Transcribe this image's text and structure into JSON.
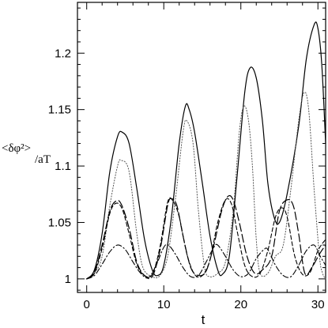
{
  "chart_data": {
    "type": "line",
    "xlabel": "t",
    "ylabel": {
      "main": "<δφ²>",
      "denominator": "/aT"
    },
    "xlim": [
      -1.2,
      31
    ],
    "ylim": [
      0.988,
      1.245
    ],
    "xticks": [
      0,
      10,
      20,
      30
    ],
    "yticks": [
      1,
      1.05,
      1.1,
      1.15,
      1.2
    ],
    "ytick_labels": [
      "1",
      "1.05",
      "1.1",
      "1.15",
      "1.2"
    ],
    "grid": false,
    "legend": "none",
    "series": [
      {
        "style": "solid",
        "color": "#000000",
        "points": [
          [
            0,
            1.0
          ],
          [
            1,
            1.008
          ],
          [
            2,
            1.04
          ],
          [
            3,
            1.095
          ],
          [
            4,
            1.126
          ],
          [
            4.6,
            1.13
          ],
          [
            5.5,
            1.12
          ],
          [
            6.5,
            1.08
          ],
          [
            7.5,
            1.035
          ],
          [
            8.5,
            1.008
          ],
          [
            9.2,
            1.003
          ],
          [
            10,
            1.012
          ],
          [
            11,
            1.055
          ],
          [
            12,
            1.12
          ],
          [
            12.8,
            1.153
          ],
          [
            13.3,
            1.15
          ],
          [
            14,
            1.13
          ],
          [
            15,
            1.085
          ],
          [
            16,
            1.038
          ],
          [
            17,
            1.008
          ],
          [
            17.6,
            1.004
          ],
          [
            18.5,
            1.02
          ],
          [
            19.5,
            1.09
          ],
          [
            20.5,
            1.165
          ],
          [
            21.2,
            1.187
          ],
          [
            22,
            1.178
          ],
          [
            22.8,
            1.14
          ],
          [
            23.5,
            1.085
          ],
          [
            24.3,
            1.055
          ],
          [
            25,
            1.05
          ],
          [
            26,
            1.075
          ],
          [
            27.5,
            1.135
          ],
          [
            28.5,
            1.195
          ],
          [
            29.5,
            1.225
          ],
          [
            30,
            1.222
          ],
          [
            30.5,
            1.19
          ],
          [
            31,
            1.12
          ]
        ]
      },
      {
        "style": "dotted",
        "color": "#555555",
        "points": [
          [
            0,
            1.0
          ],
          [
            1,
            1.005
          ],
          [
            2,
            1.02
          ],
          [
            3,
            1.065
          ],
          [
            4,
            1.1
          ],
          [
            4.5,
            1.105
          ],
          [
            5.5,
            1.095
          ],
          [
            6.5,
            1.04
          ],
          [
            7.3,
            1.01
          ],
          [
            8.5,
            1.002
          ],
          [
            9.5,
            1.003
          ],
          [
            10.5,
            1.02
          ],
          [
            11.5,
            1.07
          ],
          [
            12.5,
            1.13
          ],
          [
            13,
            1.14
          ],
          [
            13.8,
            1.12
          ],
          [
            14.5,
            1.06
          ],
          [
            15.3,
            1.01
          ],
          [
            16,
            1.002
          ],
          [
            17,
            1.005
          ],
          [
            18,
            1.015
          ],
          [
            19,
            1.06
          ],
          [
            19.8,
            1.13
          ],
          [
            20.4,
            1.153
          ],
          [
            21,
            1.14
          ],
          [
            21.5,
            1.1
          ],
          [
            22,
            1.035
          ],
          [
            22.5,
            1.005
          ],
          [
            23.5,
            1.005
          ],
          [
            24.5,
            1.02
          ],
          [
            25.5,
            1.03
          ],
          [
            26.5,
            1.08
          ],
          [
            27.5,
            1.14
          ],
          [
            28.2,
            1.165
          ],
          [
            28.8,
            1.15
          ],
          [
            29.5,
            1.08
          ],
          [
            30.2,
            1.02
          ],
          [
            30.6,
            1.005
          ],
          [
            31,
            1.0
          ]
        ]
      },
      {
        "style": "long-dash",
        "color": "#000000",
        "points": [
          [
            0,
            1.0
          ],
          [
            1,
            1.006
          ],
          [
            2,
            1.03
          ],
          [
            3,
            1.06
          ],
          [
            3.8,
            1.069
          ],
          [
            4.5,
            1.066
          ],
          [
            5.5,
            1.045
          ],
          [
            6.5,
            1.015
          ],
          [
            7.5,
            1.003
          ],
          [
            8.5,
            1.002
          ],
          [
            9.5,
            1.025
          ],
          [
            10.5,
            1.065
          ],
          [
            11,
            1.071
          ],
          [
            11.7,
            1.065
          ],
          [
            12.5,
            1.038
          ],
          [
            13.5,
            1.01
          ],
          [
            14.5,
            1.003
          ],
          [
            15.5,
            1.007
          ],
          [
            16.5,
            1.03
          ],
          [
            17.5,
            1.06
          ],
          [
            18.3,
            1.073
          ],
          [
            19,
            1.07
          ],
          [
            19.8,
            1.05
          ],
          [
            20.8,
            1.02
          ],
          [
            21.8,
            1.005
          ],
          [
            22.8,
            1.008
          ],
          [
            24,
            1.02
          ],
          [
            25,
            1.06
          ],
          [
            26,
            1.07
          ],
          [
            26.8,
            1.065
          ],
          [
            27.5,
            1.04
          ],
          [
            28.3,
            1.005
          ],
          [
            29.2,
            1.01
          ],
          [
            30.2,
            1.022
          ],
          [
            31,
            1.03
          ]
        ]
      },
      {
        "style": "dash-dot",
        "color": "#000000",
        "points": [
          [
            0,
            1.0
          ],
          [
            1,
            1.003
          ],
          [
            2,
            1.013
          ],
          [
            3,
            1.024
          ],
          [
            4,
            1.03
          ],
          [
            5,
            1.026
          ],
          [
            6,
            1.015
          ],
          [
            7,
            1.005
          ],
          [
            8,
            1.001
          ],
          [
            9,
            1.012
          ],
          [
            10,
            1.028
          ],
          [
            10.6,
            1.03
          ],
          [
            11.5,
            1.022
          ],
          [
            12.5,
            1.01
          ],
          [
            13.5,
            1.002
          ],
          [
            14.5,
            1.003
          ],
          [
            15.5,
            1.015
          ],
          [
            16.5,
            1.028
          ],
          [
            17,
            1.03
          ],
          [
            18,
            1.02
          ],
          [
            19,
            1.008
          ],
          [
            20,
            1.002
          ],
          [
            21,
            1.005
          ],
          [
            22,
            1.018
          ],
          [
            23,
            1.026
          ],
          [
            23.5,
            1.026
          ],
          [
            24.5,
            1.012
          ],
          [
            25.5,
            1.003
          ],
          [
            26.5,
            1.002
          ],
          [
            27.5,
            1.012
          ],
          [
            28.5,
            1.025
          ],
          [
            29.5,
            1.03
          ],
          [
            30.3,
            1.02
          ],
          [
            31,
            1.012
          ]
        ]
      },
      {
        "style": "short-dash",
        "color": "#000000",
        "points": [
          [
            0,
            1.0
          ],
          [
            1,
            1.005
          ],
          [
            2,
            1.027
          ],
          [
            3,
            1.058
          ],
          [
            3.8,
            1.067
          ],
          [
            4.6,
            1.062
          ],
          [
            5.5,
            1.04
          ],
          [
            6.5,
            1.013
          ],
          [
            7.5,
            1.003
          ],
          [
            8.5,
            1.004
          ],
          [
            9.5,
            1.028
          ],
          [
            10.5,
            1.068
          ],
          [
            11.2,
            1.069
          ],
          [
            12,
            1.055
          ],
          [
            13,
            1.022
          ],
          [
            14,
            1.004
          ],
          [
            15,
            1.003
          ],
          [
            16,
            1.017
          ],
          [
            17,
            1.05
          ],
          [
            18,
            1.07
          ],
          [
            18.8,
            1.066
          ],
          [
            19.5,
            1.043
          ],
          [
            20.5,
            1.012
          ],
          [
            21.5,
            1.002
          ],
          [
            22.5,
            1.005
          ],
          [
            23.5,
            1.025
          ],
          [
            24.5,
            1.055
          ],
          [
            25.3,
            1.063
          ],
          [
            26,
            1.055
          ],
          [
            27,
            1.02
          ],
          [
            28,
            1.004
          ],
          [
            29,
            1.006
          ],
          [
            30,
            1.025
          ],
          [
            31,
            1.035
          ]
        ]
      }
    ]
  }
}
